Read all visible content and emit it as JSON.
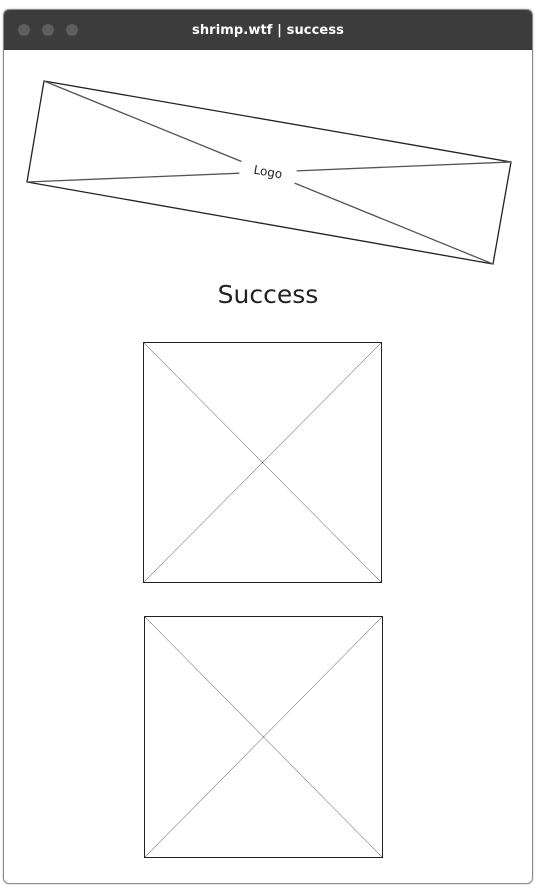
{
  "window": {
    "title": "shrimp.wtf | success"
  },
  "logo": {
    "label": "Logo"
  },
  "main": {
    "heading": "Success"
  }
}
